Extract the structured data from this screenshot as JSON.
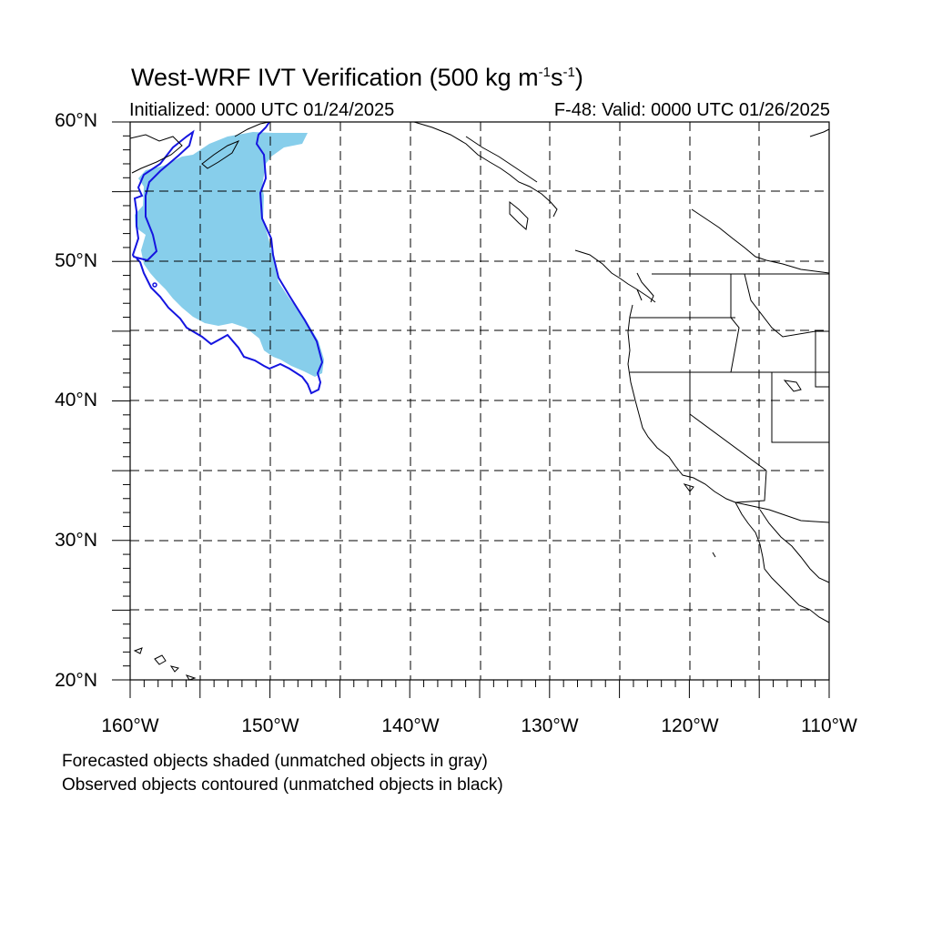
{
  "title": {
    "main": "West-WRF IVT Verification (500 kg m",
    "exp1": "-1",
    "s": "s",
    "exp2": "-1",
    "close": ")"
  },
  "subtitle": {
    "left": "Initialized: 0000 UTC 01/24/2025",
    "right": "F-48: Valid: 0000 UTC 01/26/2025"
  },
  "axes": {
    "lat_labels": [
      "60°N",
      "50°N",
      "40°N",
      "30°N",
      "20°N"
    ],
    "lon_labels": [
      "160°W",
      "150°W",
      "140°W",
      "130°W",
      "120°W",
      "110°W"
    ]
  },
  "map_extent": {
    "lon": [
      -160,
      -110
    ],
    "lat": [
      20,
      60
    ]
  },
  "gridlines": "dashed every 5°",
  "colors": {
    "forecast_fill": "#87CEEB",
    "observed_contour": "#1515e0",
    "coastline": "#000000",
    "grid": "#000000"
  },
  "footnotes": [
    "Forecasted objects shaded (unmatched objects in gray)",
    "Observed objects contoured (unmatched objects in black)"
  ]
}
